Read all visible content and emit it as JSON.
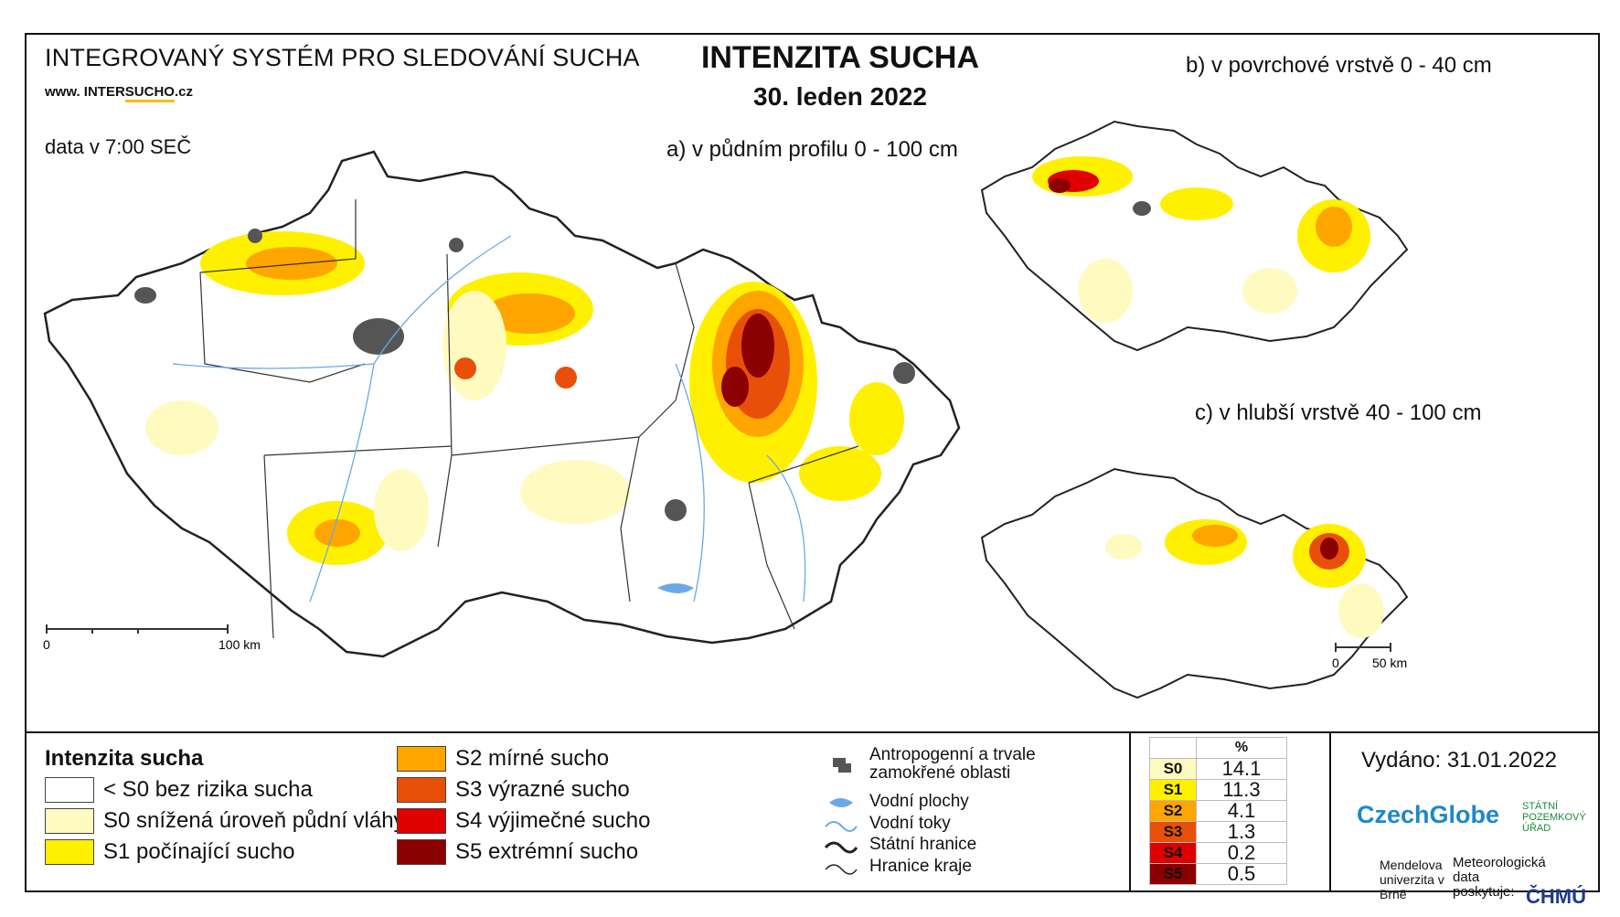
{
  "header": {
    "system_name": "INTEGROVANÝ SYSTÉM PRO SLEDOVÁNÍ SUCHA",
    "url_prefix": "www. INTER",
    "url_accent": "SUCHO",
    "url_suffix": ".cz",
    "data_time": "data v 7:00 SEČ",
    "title": "INTENZITA SUCHA",
    "date": "30. leden 2022"
  },
  "maps": {
    "main_label": "a) v půdním profilu 0 - 100 cm",
    "main_scale_start": "0",
    "main_scale_end": "100 km",
    "surface_label": "b) v povrchové vrstvě 0 - 40 cm",
    "deep_label": "c) v hlubší vrstvě 40 - 100 cm",
    "small_scale_start": "0",
    "small_scale_end": "50 km"
  },
  "legend": {
    "title": "Intenzita sucha",
    "classes": [
      {
        "label": "< S0 bez rizika sucha",
        "color": "#ffffff"
      },
      {
        "label": "S0 snížená úroveň půdní vláhy",
        "color": "#fffbc0"
      },
      {
        "label": "S1 počínající sucho",
        "color": "#fff000"
      },
      {
        "label": "S2 mírné sucho",
        "color": "#ffa500"
      },
      {
        "label": "S3 výrazné sucho",
        "color": "#e8500a"
      },
      {
        "label": "S4 výjimečné sucho",
        "color": "#e00000"
      },
      {
        "label": "S5 extrémní sucho",
        "color": "#8b0000"
      }
    ],
    "reference": [
      {
        "label": "Antropogenní a trvale zamokřené oblasti",
        "icon": "urban-area-icon"
      },
      {
        "label": "Vodní plochy",
        "icon": "water-body-icon"
      },
      {
        "label": "Vodní toky",
        "icon": "river-icon"
      },
      {
        "label": "Státní hranice",
        "icon": "state-border-icon"
      },
      {
        "label": "Hranice kraje",
        "icon": "region-border-icon"
      }
    ]
  },
  "percent_table": {
    "header": "%",
    "rows": [
      {
        "cls": "S0",
        "value": "14.1",
        "color": "#fffbc0"
      },
      {
        "cls": "S1",
        "value": "11.3",
        "color": "#fff000"
      },
      {
        "cls": "S2",
        "value": "4.1",
        "color": "#ffa500"
      },
      {
        "cls": "S3",
        "value": "1.3",
        "color": "#e8500a"
      },
      {
        "cls": "S4",
        "value": "0.2",
        "color": "#e00000"
      },
      {
        "cls": "S5",
        "value": "0.5",
        "color": "#8b0000"
      }
    ]
  },
  "footer": {
    "issued": "Vydáno: 31.01.2022",
    "czechglobe": "CzechGlobe",
    "spu": "STÁTNÍ POZEMKOVÝ ÚŘAD",
    "mendel": "Mendelova univerzita v Brně",
    "chmi_text": "Meteorologická data poskytuje:",
    "chmi": "ČHMÚ"
  }
}
